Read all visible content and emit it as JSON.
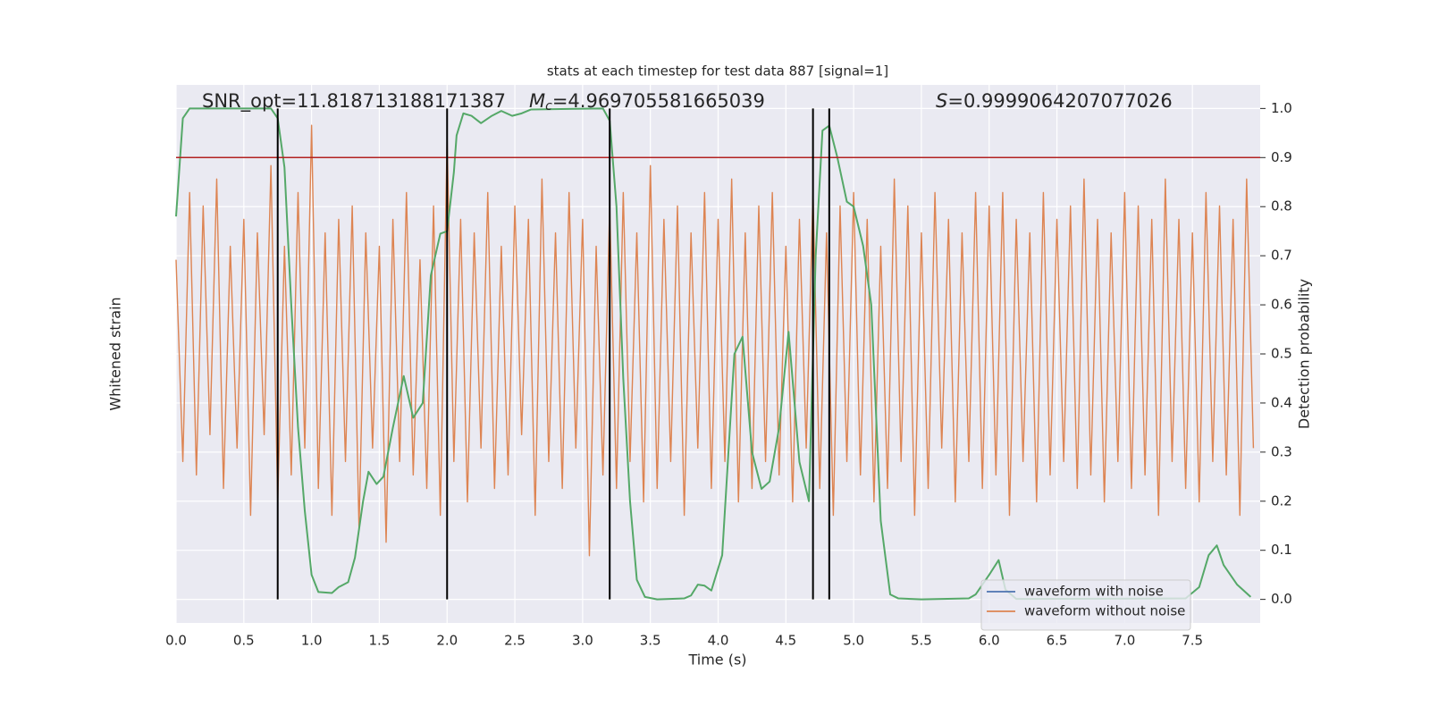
{
  "chart_data": {
    "type": "line",
    "title": "stats at each timestep for test data 887 [signal=1]",
    "xlabel": "Time (s)",
    "ylabel": "Whitened strain",
    "y2label": "Detection probability",
    "annotations": [
      {
        "text": "SNR_opt=11.818713188171387"
      },
      {
        "symbol": "M",
        "subscript": "c",
        "text": "=4.969705581665039"
      },
      {
        "symbol": "S",
        "text": "=0.9999064207077026"
      }
    ],
    "xlim": [
      0,
      8
    ],
    "xticks": [
      {
        "value": 0,
        "label": "0.0"
      },
      {
        "value": 0.5,
        "label": "0.5"
      },
      {
        "value": 1,
        "label": "1.0"
      },
      {
        "value": 1.5,
        "label": "1.5"
      },
      {
        "value": 2,
        "label": "2.0"
      },
      {
        "value": 2.5,
        "label": "2.5"
      },
      {
        "value": 3,
        "label": "3.0"
      },
      {
        "value": 3.5,
        "label": "3.5"
      },
      {
        "value": 4,
        "label": "4.0"
      },
      {
        "value": 4.5,
        "label": "4.5"
      },
      {
        "value": 5,
        "label": "5.0"
      },
      {
        "value": 5.5,
        "label": "5.5"
      },
      {
        "value": 6,
        "label": "6.0"
      },
      {
        "value": 6.5,
        "label": "6.5"
      },
      {
        "value": 7,
        "label": "7.0"
      },
      {
        "value": 7.5,
        "label": "7.5"
      }
    ],
    "ylim": [
      -1,
      1
    ],
    "y2lim": [
      -0.048,
      1.048
    ],
    "y2ticks": [
      {
        "value": 0,
        "label": "0.0"
      },
      {
        "value": 0.1,
        "label": "0.1"
      },
      {
        "value": 0.2,
        "label": "0.2"
      },
      {
        "value": 0.3,
        "label": "0.3"
      },
      {
        "value": 0.4,
        "label": "0.4"
      },
      {
        "value": 0.5,
        "label": "0.5"
      },
      {
        "value": 0.6,
        "label": "0.6"
      },
      {
        "value": 0.7,
        "label": "0.7"
      },
      {
        "value": 0.8,
        "label": "0.8"
      },
      {
        "value": 0.9,
        "label": "0.9"
      },
      {
        "value": 1,
        "label": "1.0"
      }
    ],
    "grid": true,
    "legend": "lower right",
    "threshold": {
      "value": 0.9,
      "color": "#b22222"
    },
    "vlines": {
      "color": "#000000",
      "x": [
        0.75,
        2.0,
        3.2,
        4.7,
        4.82
      ]
    },
    "series": [
      {
        "name": "waveform with noise",
        "color": "#4c72b0",
        "x": [],
        "values": []
      },
      {
        "name": "waveform without noise",
        "color": "#dd8452",
        "x": [
          0,
          0.05,
          0.1,
          0.15,
          0.2,
          0.25,
          0.3,
          0.35,
          0.4,
          0.45,
          0.5,
          0.55,
          0.6,
          0.65,
          0.7,
          0.75,
          0.8,
          0.85,
          0.9,
          0.95,
          1,
          1.05,
          1.1,
          1.15,
          1.2,
          1.25,
          1.3,
          1.35,
          1.4,
          1.45,
          1.5,
          1.55,
          1.6,
          1.65,
          1.7,
          1.75,
          1.8,
          1.85,
          1.9,
          1.95,
          2,
          2.05,
          2.1,
          2.15,
          2.2,
          2.25,
          2.3,
          2.35,
          2.4,
          2.45,
          2.5,
          2.55,
          2.6,
          2.65,
          2.7,
          2.75,
          2.8,
          2.85,
          2.9,
          2.95,
          3,
          3.05,
          3.1,
          3.15,
          3.2,
          3.25,
          3.3,
          3.35,
          3.4,
          3.45,
          3.5,
          3.55,
          3.6,
          3.65,
          3.7,
          3.75,
          3.8,
          3.85,
          3.9,
          3.95,
          4,
          4.05,
          4.1,
          4.15,
          4.2,
          4.25,
          4.3,
          4.35,
          4.4,
          4.45,
          4.5,
          4.55,
          4.6,
          4.65,
          4.7,
          4.75,
          4.8,
          4.85,
          4.9,
          4.95,
          5,
          5.05,
          5.1,
          5.15,
          5.2,
          5.25,
          5.3,
          5.35,
          5.4,
          5.45,
          5.5,
          5.55,
          5.6,
          5.65,
          5.7,
          5.75,
          5.8,
          5.85,
          5.9,
          5.95,
          6,
          6.05,
          6.1,
          6.15,
          6.2,
          6.25,
          6.3,
          6.35,
          6.4,
          6.45,
          6.5,
          6.55,
          6.6,
          6.65,
          6.7,
          6.75,
          6.8,
          6.85,
          6.9,
          6.95,
          7,
          7.05,
          7.1,
          7.15,
          7.2,
          7.25,
          7.3,
          7.35,
          7.4,
          7.45,
          7.5,
          7.55,
          7.6,
          7.65,
          7.7,
          7.75,
          7.8,
          7.85,
          7.9,
          7.95
        ],
        "values": [
          0.35,
          -0.4,
          0.6,
          -0.45,
          0.55,
          -0.3,
          0.65,
          -0.5,
          0.4,
          -0.35,
          0.5,
          -0.6,
          0.45,
          -0.3,
          0.7,
          -0.55,
          0.4,
          -0.45,
          0.6,
          -0.35,
          0.85,
          -0.5,
          0.45,
          -0.6,
          0.5,
          -0.4,
          0.55,
          -0.65,
          0.45,
          -0.35,
          0.4,
          -0.7,
          0.5,
          -0.4,
          0.6,
          -0.45,
          0.35,
          -0.5,
          0.55,
          -0.6,
          0.8,
          -0.4,
          0.5,
          -0.55,
          0.45,
          -0.35,
          0.6,
          -0.5,
          0.4,
          -0.45,
          0.55,
          -0.3,
          0.5,
          -0.6,
          0.65,
          -0.4,
          0.45,
          -0.5,
          0.6,
          -0.35,
          0.5,
          -0.75,
          0.4,
          -0.45,
          0.55,
          -0.5,
          0.6,
          -0.4,
          0.45,
          -0.55,
          0.7,
          -0.5,
          0.5,
          -0.4,
          0.55,
          -0.6,
          0.45,
          -0.35,
          0.6,
          -0.5,
          0.5,
          -0.4,
          0.65,
          -0.55,
          0.45,
          -0.5,
          0.55,
          -0.4,
          0.6,
          -0.45,
          0.4,
          -0.55,
          0.5,
          -0.35,
          0.6,
          -0.5,
          0.45,
          -0.6,
          0.55,
          -0.4,
          0.6,
          -0.45,
          0.5,
          -0.55,
          0.4,
          -0.5,
          0.65,
          -0.4,
          0.55,
          -0.6,
          0.45,
          -0.5,
          0.6,
          -0.35,
          0.5,
          -0.55,
          0.45,
          -0.4,
          0.6,
          -0.5,
          0.55,
          -0.45,
          0.6,
          -0.6,
          0.5,
          -0.4,
          0.45,
          -0.55,
          0.6,
          -0.45,
          0.5,
          -0.4,
          0.55,
          -0.5,
          0.65,
          -0.45,
          0.5,
          -0.55,
          0.45,
          -0.4,
          0.6,
          -0.5,
          0.55,
          -0.45,
          0.5,
          -0.6,
          0.65,
          -0.4,
          0.5,
          -0.5,
          0.45,
          -0.55,
          0.6,
          -0.4,
          0.55,
          -0.45,
          0.5,
          -0.6,
          0.65,
          -0.35
        ]
      },
      {
        "color": "#55a868",
        "axis": "y2",
        "x": [
          0,
          0.05,
          0.1,
          0.7,
          0.75,
          0.8,
          0.85,
          0.9,
          0.95,
          1.0,
          1.05,
          1.15,
          1.2,
          1.27,
          1.32,
          1.38,
          1.42,
          1.48,
          1.53,
          1.6,
          1.68,
          1.75,
          1.82,
          1.88,
          1.95,
          2.0,
          2.05,
          2.07,
          2.12,
          2.18,
          2.25,
          2.33,
          2.4,
          2.48,
          2.55,
          2.62,
          3.15,
          3.2,
          3.25,
          3.3,
          3.35,
          3.4,
          3.46,
          3.55,
          3.75,
          3.8,
          3.85,
          3.9,
          3.95,
          4.03,
          4.12,
          4.18,
          4.25,
          4.32,
          4.38,
          4.45,
          4.52,
          4.6,
          4.67,
          4.72,
          4.77,
          4.82,
          4.88,
          4.95,
          5.0,
          5.07,
          5.13,
          5.2,
          5.27,
          5.33,
          5.5,
          5.85,
          5.9,
          6.0,
          6.07,
          6.12,
          6.2,
          7.45,
          7.55,
          7.62,
          7.68,
          7.73,
          7.83,
          7.93
        ],
        "values": [
          0.78,
          0.98,
          1.0,
          1.0,
          0.98,
          0.88,
          0.6,
          0.35,
          0.18,
          0.05,
          0.015,
          0.013,
          0.025,
          0.035,
          0.085,
          0.2,
          0.26,
          0.235,
          0.25,
          0.35,
          0.455,
          0.37,
          0.4,
          0.66,
          0.745,
          0.75,
          0.87,
          0.945,
          0.99,
          0.985,
          0.97,
          0.985,
          0.995,
          0.985,
          0.99,
          0.998,
          1.0,
          0.975,
          0.8,
          0.45,
          0.2,
          0.04,
          0.005,
          0.0,
          0.002,
          0.008,
          0.03,
          0.028,
          0.018,
          0.09,
          0.5,
          0.535,
          0.3,
          0.225,
          0.24,
          0.35,
          0.545,
          0.28,
          0.2,
          0.7,
          0.955,
          0.965,
          0.9,
          0.81,
          0.8,
          0.72,
          0.6,
          0.16,
          0.01,
          0.002,
          0.0,
          0.002,
          0.01,
          0.05,
          0.08,
          0.02,
          0.001,
          0.002,
          0.025,
          0.09,
          0.11,
          0.07,
          0.03,
          0.005
        ]
      }
    ]
  }
}
